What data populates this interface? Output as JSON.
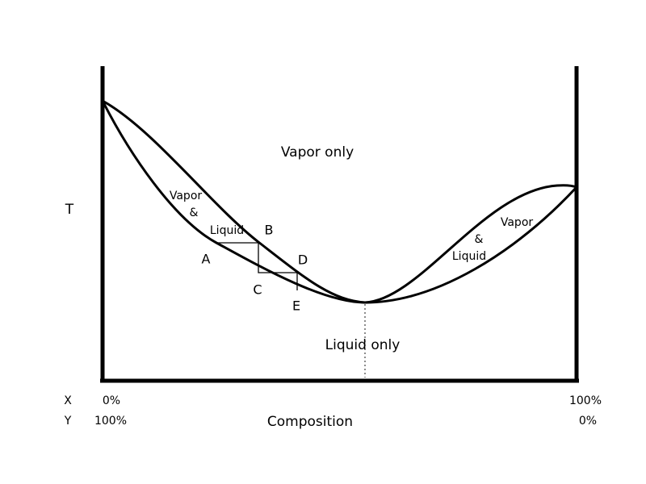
{
  "axes": {
    "y_label": "T",
    "x_label": "Composition",
    "x_row": "X",
    "y_row": "Y",
    "left_x": "0%",
    "left_y": "100%",
    "right_x": "100%",
    "right_y": "0%"
  },
  "regions": {
    "vapor_only": "Vapor only",
    "liquid_only": "Liquid only",
    "left_two_phase": [
      "Vapor",
      "&",
      "Liquid"
    ],
    "right_two_phase": [
      "Vapor",
      "&",
      "Liquid"
    ]
  },
  "points": [
    "A",
    "B",
    "C",
    "D",
    "E"
  ]
}
